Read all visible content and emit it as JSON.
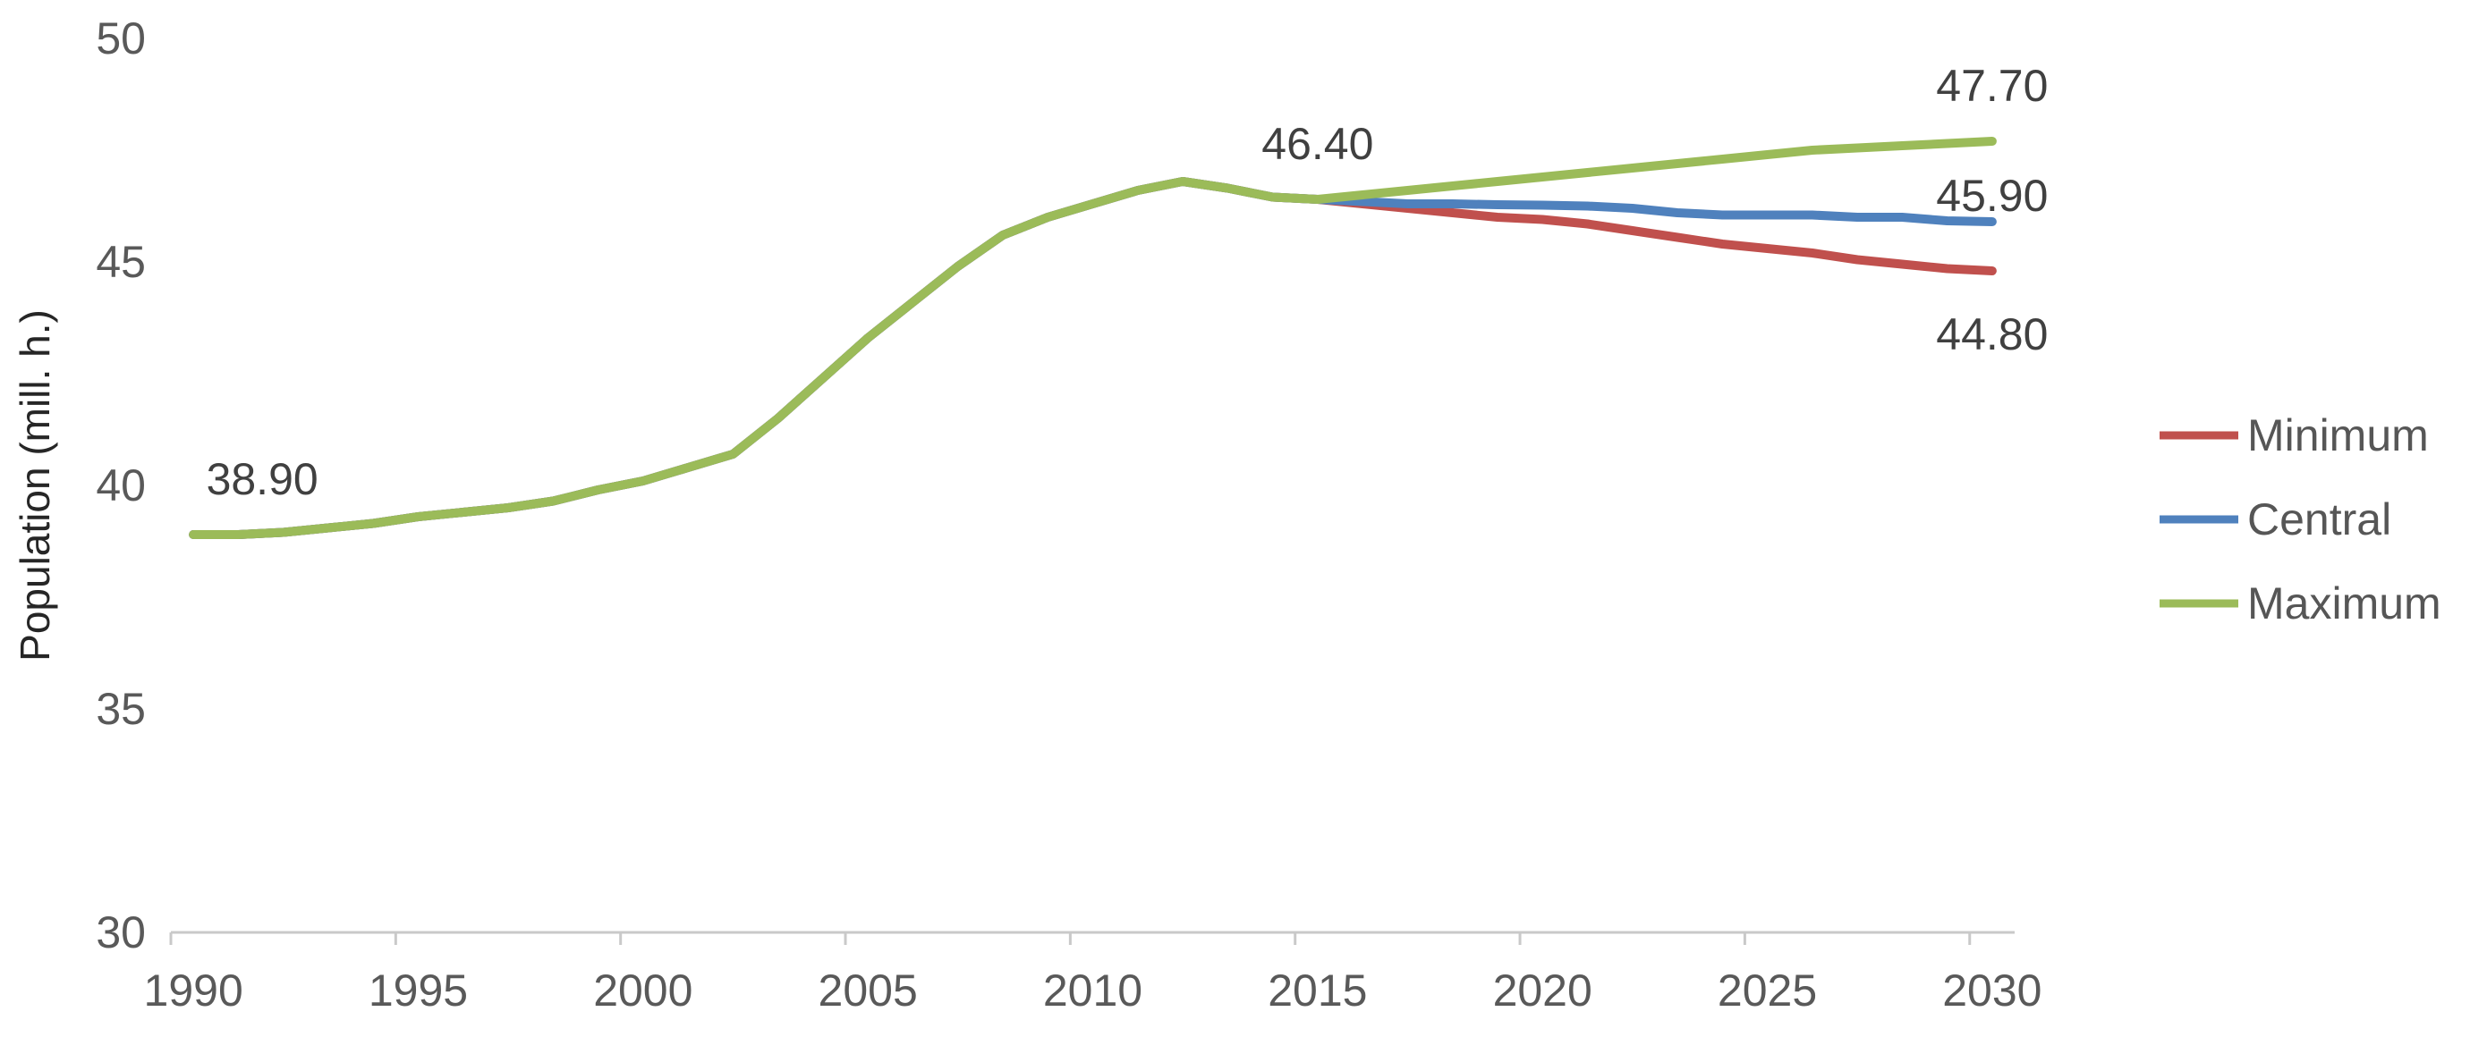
{
  "chart_data": {
    "type": "line",
    "title": "",
    "xlabel": "",
    "ylabel": "Population (mill. h.)",
    "ylim": [
      30,
      50
    ],
    "yticks": [
      30,
      35,
      40,
      45,
      50
    ],
    "xticks": [
      1990,
      1995,
      2000,
      2005,
      2010,
      2015,
      2020,
      2025,
      2030
    ],
    "grid": false,
    "legend_position": "right",
    "x": [
      1990,
      1991,
      1992,
      1993,
      1994,
      1995,
      1996,
      1997,
      1998,
      1999,
      2000,
      2001,
      2002,
      2003,
      2004,
      2005,
      2006,
      2007,
      2008,
      2009,
      2010,
      2011,
      2012,
      2013,
      2014,
      2015,
      2016,
      2017,
      2018,
      2019,
      2020,
      2021,
      2022,
      2023,
      2024,
      2025,
      2026,
      2027,
      2028,
      2029,
      2030
    ],
    "series": [
      {
        "name": "Minimum",
        "color": "#C0504D",
        "values": [
          38.9,
          38.9,
          38.95,
          39.05,
          39.15,
          39.3,
          39.4,
          39.5,
          39.65,
          39.9,
          40.1,
          40.4,
          40.7,
          41.5,
          42.4,
          43.3,
          44.1,
          44.9,
          45.6,
          46.0,
          46.3,
          46.6,
          46.8,
          46.65,
          46.45,
          46.4,
          46.3,
          46.2,
          46.1,
          46.0,
          45.95,
          45.85,
          45.7,
          45.55,
          45.4,
          45.3,
          45.2,
          45.05,
          44.95,
          44.85,
          44.8
        ]
      },
      {
        "name": "Central",
        "color": "#4F81BD",
        "values": [
          38.9,
          38.9,
          38.95,
          39.05,
          39.15,
          39.3,
          39.4,
          39.5,
          39.65,
          39.9,
          40.1,
          40.4,
          40.7,
          41.5,
          42.4,
          43.3,
          44.1,
          44.9,
          45.6,
          46.0,
          46.3,
          46.6,
          46.8,
          46.65,
          46.45,
          46.4,
          46.35,
          46.3,
          46.3,
          46.28,
          46.27,
          46.25,
          46.2,
          46.1,
          46.05,
          46.05,
          46.05,
          46.0,
          46.0,
          45.92,
          45.9
        ]
      },
      {
        "name": "Maximum",
        "color": "#9BBB59",
        "values": [
          38.9,
          38.9,
          38.95,
          39.05,
          39.15,
          39.3,
          39.4,
          39.5,
          39.65,
          39.9,
          40.1,
          40.4,
          40.7,
          41.5,
          42.4,
          43.3,
          44.1,
          44.9,
          45.6,
          46.0,
          46.3,
          46.6,
          46.8,
          46.65,
          46.45,
          46.4,
          46.5,
          46.6,
          46.7,
          46.8,
          46.9,
          47.0,
          47.1,
          47.2,
          47.3,
          47.4,
          47.5,
          47.55,
          47.6,
          47.65,
          47.7
        ]
      }
    ],
    "annotations": [
      {
        "text": "38.90",
        "year": 1990,
        "value": 38.9,
        "placement": "above-right"
      },
      {
        "text": "46.40",
        "year": 2015,
        "value": 46.4,
        "placement": "above"
      },
      {
        "text": "47.70",
        "year": 2030,
        "value": 47.7,
        "placement": "above"
      },
      {
        "text": "45.90",
        "year": 2030,
        "value": 45.9,
        "placement": "above-near"
      },
      {
        "text": "44.80",
        "year": 2030,
        "value": 44.8,
        "placement": "below"
      }
    ],
    "legend": {
      "items": [
        "Minimum",
        "Central",
        "Maximum"
      ]
    },
    "colors": {
      "axis_line": "#C9C9C9",
      "tick_label": "#595959",
      "data_label": "#404040",
      "axis_title": "#262626",
      "legend_text": "#565656",
      "background": "#FFFFFF"
    }
  }
}
